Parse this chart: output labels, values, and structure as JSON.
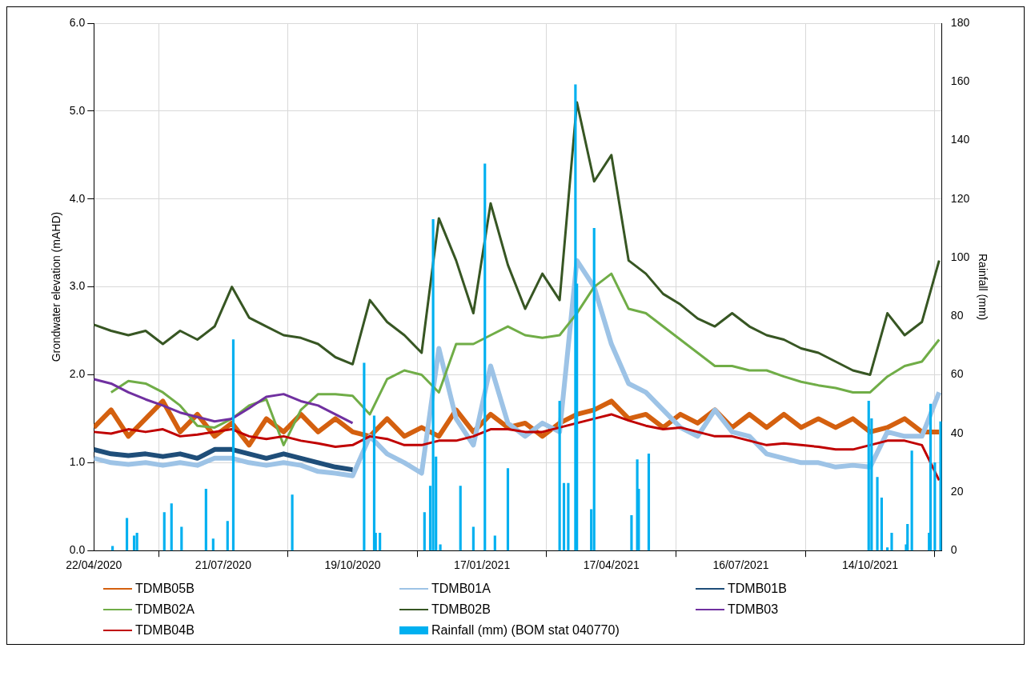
{
  "chart_data": {
    "type": "line",
    "ylabel": "Grondwater elevation (mAHD)",
    "y2label": "Rainfall (mm)",
    "x": [
      "2020-04-22",
      "2020-05-04",
      "2020-05-16",
      "2020-05-28",
      "2020-06-09",
      "2020-06-21",
      "2020-07-03",
      "2020-07-15",
      "2020-07-27",
      "2020-08-08",
      "2020-08-20",
      "2020-09-01",
      "2020-09-13",
      "2020-09-25",
      "2020-10-07",
      "2020-10-19",
      "2020-10-31",
      "2020-11-12",
      "2020-11-24",
      "2020-12-06",
      "2020-12-18",
      "2020-12-30",
      "2021-01-11",
      "2021-01-23",
      "2021-02-04",
      "2021-02-16",
      "2021-02-28",
      "2021-03-12",
      "2021-03-24",
      "2021-04-05",
      "2021-04-17",
      "2021-04-29",
      "2021-05-11",
      "2021-05-23",
      "2021-06-04",
      "2021-06-16",
      "2021-06-28",
      "2021-07-10",
      "2021-07-22",
      "2021-08-03",
      "2021-08-15",
      "2021-08-27",
      "2021-09-08",
      "2021-09-20",
      "2021-10-02",
      "2021-10-14",
      "2021-10-26",
      "2021-11-07",
      "2021-11-19",
      "2021-12-01"
    ],
    "xlim": [
      "2020-04-22",
      "2021-12-03"
    ],
    "xticks": [
      {
        "value": "2020-04-22",
        "label": "22/04/2020"
      },
      {
        "value": "2020-07-21",
        "label": "21/07/2020"
      },
      {
        "value": "2020-10-19",
        "label": "19/10/2020"
      },
      {
        "value": "2021-01-17",
        "label": "17/01/2021"
      },
      {
        "value": "2021-04-17",
        "label": "17/04/2021"
      },
      {
        "value": "2021-07-16",
        "label": "16/07/2021"
      },
      {
        "value": "2021-10-14",
        "label": "14/10/2021"
      }
    ],
    "ylim": [
      0,
      6
    ],
    "yticks": [
      {
        "value": 0,
        "label": "0.0"
      },
      {
        "value": 1,
        "label": "1.0"
      },
      {
        "value": 2,
        "label": "2.0"
      },
      {
        "value": 3,
        "label": "3.0"
      },
      {
        "value": 4,
        "label": "4.0"
      },
      {
        "value": 5,
        "label": "5.0"
      },
      {
        "value": 6,
        "label": "6.0"
      }
    ],
    "y2lim": [
      0,
      180
    ],
    "y2ticks": [
      0,
      20,
      40,
      60,
      80,
      100,
      120,
      140,
      160,
      180
    ],
    "grid": true,
    "legend": "bottom",
    "marker": "none",
    "series": [
      {
        "name": "TDMB05B",
        "color": "#d4600f",
        "values": [
          1.4,
          1.6,
          1.3,
          1.5,
          1.7,
          1.35,
          1.55,
          1.3,
          1.45,
          1.2,
          1.5,
          1.35,
          1.55,
          1.35,
          1.5,
          1.35,
          1.3,
          1.5,
          1.3,
          1.4,
          1.3,
          1.6,
          1.35,
          1.55,
          1.4,
          1.45,
          1.3,
          1.45,
          1.55,
          1.6,
          1.7,
          1.5,
          1.55,
          1.4,
          1.55,
          1.45,
          1.6,
          1.4,
          1.55,
          1.4,
          1.55,
          1.4,
          1.5,
          1.4,
          1.5,
          1.35,
          1.4,
          1.5,
          1.35,
          1.35
        ]
      },
      {
        "name": "TDMB01A",
        "color": "#9dc3e6",
        "values": [
          1.05,
          1.0,
          0.98,
          1.0,
          0.97,
          1.0,
          0.97,
          1.05,
          1.05,
          1.0,
          0.97,
          1.0,
          0.97,
          0.9,
          0.88,
          0.85,
          1.3,
          1.1,
          1.0,
          0.88,
          2.3,
          1.5,
          1.2,
          2.1,
          1.45,
          1.3,
          1.45,
          1.35,
          3.3,
          3.0,
          2.35,
          1.9,
          1.8,
          1.6,
          1.4,
          1.3,
          1.6,
          1.35,
          1.3,
          1.1,
          1.05,
          1.0,
          1.0,
          0.95,
          0.97,
          0.95,
          1.35,
          1.3,
          1.3,
          1.8
        ]
      },
      {
        "name": "TDMB01B",
        "color": "#1f4e79",
        "values": [
          1.15,
          1.1,
          1.08,
          1.1,
          1.07,
          1.1,
          1.05,
          1.15,
          1.15,
          1.1,
          1.05,
          1.1,
          1.05,
          1.0,
          0.95,
          0.92,
          null,
          null,
          null,
          null,
          null,
          null,
          null,
          null,
          null,
          null,
          null,
          null,
          null,
          null,
          null,
          null,
          null,
          null,
          null,
          null,
          null,
          null,
          null,
          null,
          null,
          null,
          null,
          null,
          null,
          null,
          null,
          null,
          null,
          null
        ]
      },
      {
        "name": "TDMB02A",
        "color": "#70ad47",
        "values": [
          null,
          1.8,
          1.93,
          1.9,
          1.8,
          1.65,
          1.42,
          1.4,
          1.5,
          1.65,
          1.72,
          1.2,
          1.6,
          1.78,
          1.78,
          1.76,
          1.55,
          1.95,
          2.05,
          2.0,
          1.8,
          2.35,
          2.35,
          2.45,
          2.55,
          2.45,
          2.42,
          2.45,
          2.7,
          3.0,
          3.15,
          2.75,
          2.7,
          2.55,
          2.4,
          2.25,
          2.1,
          2.1,
          2.05,
          2.05,
          1.98,
          1.92,
          1.88,
          1.85,
          1.8,
          1.8,
          1.98,
          2.1,
          2.15,
          2.4
        ]
      },
      {
        "name": "TDMB02B",
        "color": "#375623",
        "values": [
          2.57,
          2.5,
          2.45,
          2.5,
          2.35,
          2.5,
          2.4,
          2.55,
          3.0,
          2.65,
          2.55,
          2.45,
          2.42,
          2.35,
          2.2,
          2.12,
          2.85,
          2.6,
          2.45,
          2.25,
          3.78,
          3.3,
          2.7,
          3.95,
          3.25,
          2.75,
          3.15,
          2.85,
          5.1,
          4.2,
          4.5,
          3.3,
          3.15,
          2.92,
          2.8,
          2.64,
          2.55,
          2.7,
          2.55,
          2.45,
          2.4,
          2.3,
          2.25,
          2.15,
          2.05,
          2.0,
          2.7,
          2.45,
          2.6,
          3.3
        ]
      },
      {
        "name": "TDMB03",
        "color": "#7030a0",
        "values": [
          1.95,
          1.9,
          1.8,
          1.72,
          1.65,
          1.57,
          1.52,
          1.47,
          1.5,
          1.62,
          1.75,
          1.78,
          1.7,
          1.65,
          1.55,
          1.45,
          null,
          null,
          null,
          null,
          null,
          null,
          null,
          null,
          null,
          null,
          null,
          null,
          null,
          null,
          null,
          null,
          null,
          null,
          null,
          null,
          null,
          null,
          null,
          null,
          null,
          null,
          null,
          null,
          null,
          null,
          null,
          null,
          null,
          null
        ]
      },
      {
        "name": "TDMB04B",
        "color": "#c00000",
        "values": [
          1.35,
          1.33,
          1.38,
          1.35,
          1.38,
          1.3,
          1.32,
          1.35,
          1.38,
          1.3,
          1.27,
          1.3,
          1.25,
          1.22,
          1.18,
          1.2,
          1.3,
          1.27,
          1.2,
          1.2,
          1.25,
          1.25,
          1.3,
          1.38,
          1.38,
          1.35,
          1.35,
          1.4,
          1.45,
          1.5,
          1.55,
          1.48,
          1.42,
          1.38,
          1.4,
          1.35,
          1.3,
          1.3,
          1.25,
          1.2,
          1.22,
          1.2,
          1.18,
          1.15,
          1.15,
          1.2,
          1.25,
          1.25,
          1.2,
          0.8
        ]
      },
      {
        "name": "Rainfall (mm) (BOM stat 040770)",
        "type": "bar",
        "axis": "y2",
        "color": "#00b0f0",
        "x": [
          "2020-05-05",
          "2020-05-15",
          "2020-05-20",
          "2020-05-22",
          "2020-06-10",
          "2020-06-15",
          "2020-06-22",
          "2020-07-09",
          "2020-07-14",
          "2020-07-24",
          "2020-07-28",
          "2020-09-07",
          "2020-10-27",
          "2020-11-03",
          "2020-11-04",
          "2020-11-07",
          "2020-12-08",
          "2020-12-12",
          "2020-12-14",
          "2020-12-16",
          "2020-12-19",
          "2021-01-02",
          "2021-01-11",
          "2021-01-19",
          "2021-01-26",
          "2021-02-04",
          "2021-03-12",
          "2021-03-15",
          "2021-03-18",
          "2021-03-23",
          "2021-03-24",
          "2021-04-03",
          "2021-04-05",
          "2021-05-01",
          "2021-05-05",
          "2021-05-06",
          "2021-05-13",
          "2021-10-13",
          "2021-10-15",
          "2021-10-19",
          "2021-10-22",
          "2021-10-26",
          "2021-10-29",
          "2021-11-08",
          "2021-11-09",
          "2021-11-12",
          "2021-11-24",
          "2021-11-25",
          "2021-11-28",
          "2021-12-02"
        ],
        "values": [
          1.5,
          11,
          5,
          6,
          13,
          16,
          8,
          21,
          4,
          10,
          72,
          19,
          64,
          46,
          6,
          6,
          13,
          22,
          113,
          32,
          2,
          22,
          8,
          132,
          5,
          28,
          51,
          23,
          23,
          159,
          91,
          14,
          110,
          12,
          31,
          21,
          33,
          51,
          45,
          25,
          18,
          1,
          6,
          2,
          9,
          34,
          6,
          50,
          30,
          44
        ]
      }
    ]
  }
}
